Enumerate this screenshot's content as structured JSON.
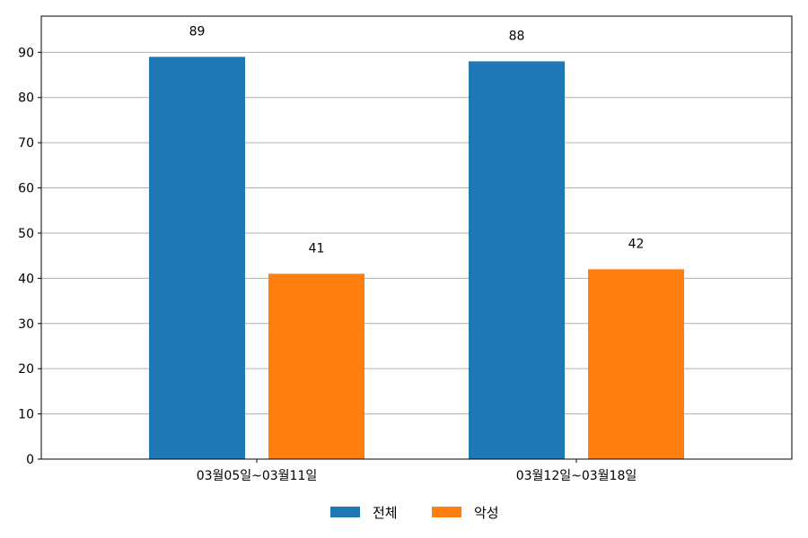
{
  "chart_data": {
    "type": "bar",
    "categories": [
      "03월05일~03월11일",
      "03월12일~03월18일"
    ],
    "series": [
      {
        "name": "전체",
        "values": [
          89,
          88
        ],
        "color": "#1f77b4"
      },
      {
        "name": "악성",
        "values": [
          41,
          42
        ],
        "color": "#ff7f0e"
      }
    ],
    "title": "",
    "xlabel": "",
    "ylabel": "",
    "ylim": [
      0,
      98
    ],
    "yticks": [
      0,
      10,
      20,
      30,
      40,
      50,
      60,
      70,
      80,
      90
    ],
    "grid": "horizontal",
    "legend_position": "bottom-center",
    "data_labels": true
  }
}
